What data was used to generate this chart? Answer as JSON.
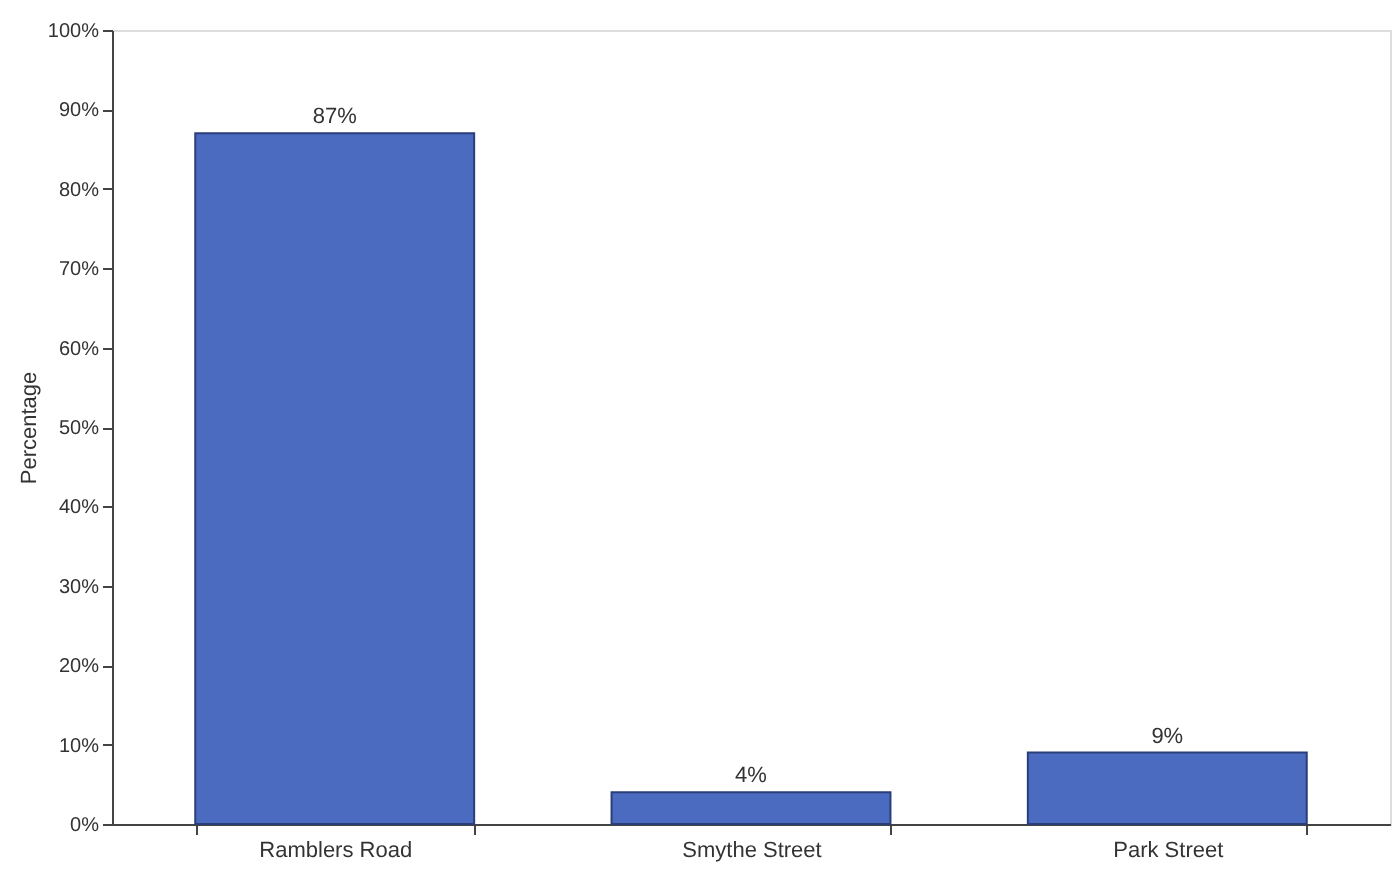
{
  "chart_data": {
    "type": "bar",
    "ylabel": "Percentage",
    "categories": [
      "Ramblers Road",
      "Smythe Street",
      "Park Street"
    ],
    "values": [
      87,
      4,
      9
    ],
    "color": "#4a6bc0",
    "value_labels": [
      "87%",
      "4%",
      "9%"
    ],
    "ylim": [
      0,
      100
    ],
    "yticks": [
      {
        "value": 0,
        "label": "0%"
      },
      {
        "value": 10,
        "label": "10%"
      },
      {
        "value": 20,
        "label": "20%"
      },
      {
        "value": 30,
        "label": "30%"
      },
      {
        "value": 40,
        "label": "40%"
      },
      {
        "value": 50,
        "label": "50%"
      },
      {
        "value": 60,
        "label": "60%"
      },
      {
        "value": 70,
        "label": "70%"
      },
      {
        "value": 80,
        "label": "80%"
      },
      {
        "value": 90,
        "label": "90%"
      },
      {
        "value": 100,
        "label": "100%"
      }
    ],
    "grid": false
  }
}
